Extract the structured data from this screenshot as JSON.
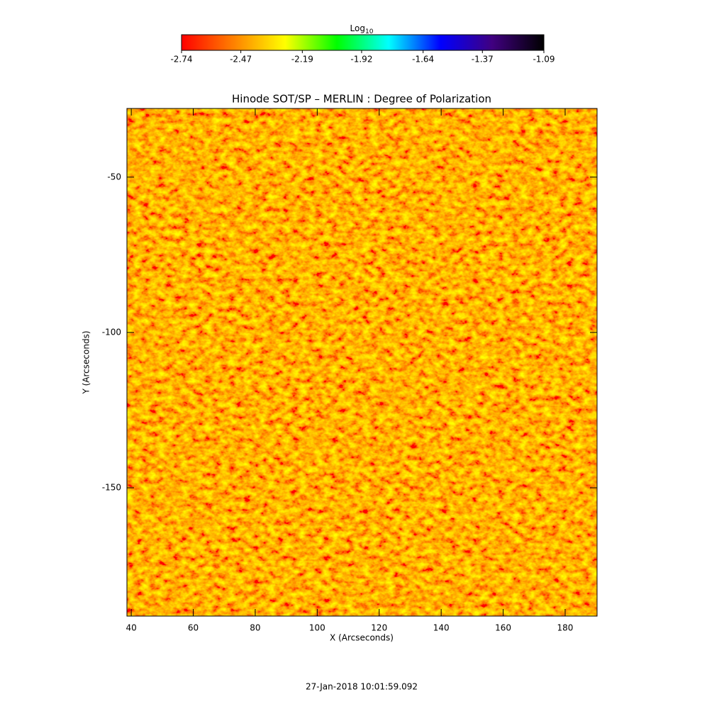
{
  "chart_data": {
    "type": "heatmap",
    "title": "Hinode SOT/SP – MERLIN : Degree of Polarization",
    "x_label": "X (Arcseconds)",
    "y_label": "Y (Arcseconds)",
    "xlim": [
      38.6,
      190.3
    ],
    "xticks": [
      40,
      60,
      80,
      100,
      120,
      140,
      160,
      180
    ],
    "ylim": [
      -191.3,
      -27.9
    ],
    "yticks": [
      -50,
      -100,
      -150
    ],
    "colorbar": {
      "label": "Log",
      "label_subscript": "10",
      "lim": [
        -2.74,
        -1.09
      ],
      "ticks": [
        -2.74,
        -2.47,
        -2.19,
        -1.92,
        -1.64,
        -1.37,
        -1.09
      ],
      "colors": [
        "#ff0000",
        "#ff8000",
        "#ffff00",
        "#00ff00",
        "#00ffff",
        "#0000ff",
        "#400080",
        "#000000"
      ]
    },
    "footer": "27-Jan-2018 10:01:59.092"
  }
}
